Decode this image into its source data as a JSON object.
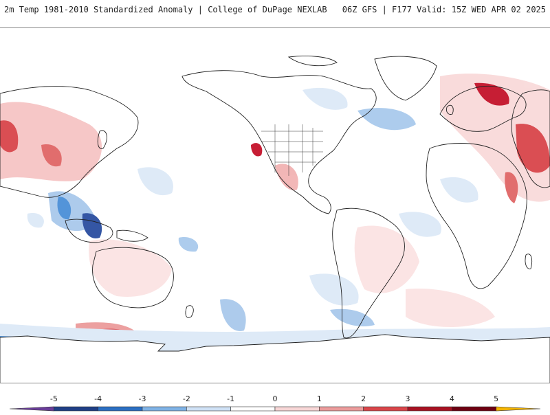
{
  "header": {
    "left_title": "2m Temp 1981-2010 Standardized Anomaly | College of DuPage NEXLAB",
    "right_title": "06Z GFS | F177 Valid: 15Z WED APR 02 2025"
  },
  "colorbar": {
    "ticks": [
      "-5",
      "-4",
      "-3",
      "-2",
      "-1",
      "0",
      "1",
      "2",
      "3",
      "4",
      "5"
    ],
    "colors": [
      "#6a3d9a",
      "#1f3f86",
      "#2b6fc2",
      "#7fb2e5",
      "#cfe1f5",
      "#ffffff",
      "#f7d6d6",
      "#eb9b9b",
      "#d9454a",
      "#a81222",
      "#6e0012",
      "#f4b400"
    ]
  },
  "map": {
    "land_color": "#ffffff",
    "coast_color": "#222222",
    "warm_colors": [
      "#fbe3e3",
      "#f2b3b3",
      "#e06666",
      "#c4122a"
    ],
    "cool_colors": [
      "#dde9f7",
      "#a9c9ec",
      "#4a8fd8",
      "#2a4ea0"
    ]
  }
}
